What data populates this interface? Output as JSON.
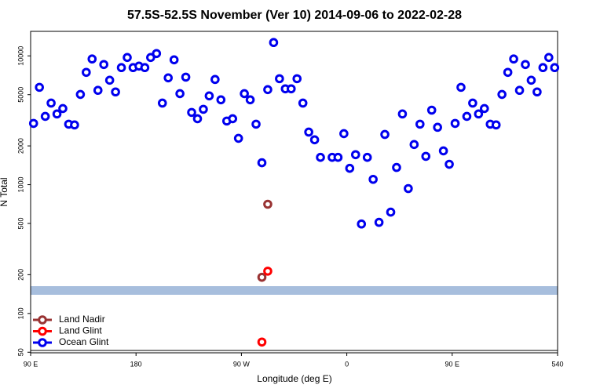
{
  "chart_data": {
    "type": "scatter",
    "title": "57.5S-52.5S November (Ver 10)   2014-09-06 to 2022-02-28",
    "x_label": "Longitude (deg E)",
    "y_label": "N Total",
    "log_y": true,
    "legend": "lower left",
    "xlim": [
      90,
      540
    ],
    "ylim": [
      49.5,
      15500
    ],
    "xticks": [
      {
        "value": 90,
        "label": "90 E"
      },
      180,
      {
        "value": 270,
        "label": "90 W"
      },
      {
        "value": 360,
        "label": "0"
      },
      {
        "value": 450,
        "label": "90 E"
      },
      540
    ],
    "yticks": [
      50,
      100,
      200,
      500,
      1000,
      2000,
      5000,
      10000
    ],
    "series": [
      {
        "name": "Land Nadir",
        "color": "#993333",
        "x": [
          287.5,
          292.5
        ],
        "values": [
          191,
          705
        ]
      },
      {
        "name": "Land Glint",
        "color": "#ff0000",
        "x": [
          287.5,
          292.5
        ],
        "values": [
          60,
          213
        ]
      },
      {
        "name": "Ocean Glint",
        "color": "#0000ee",
        "x": [
          92.5,
          97.5,
          102.5,
          107.5,
          112.5,
          117.5,
          122.5,
          127.5,
          132.5,
          137.5,
          142.5,
          147.5,
          152.5,
          157.5,
          162.5,
          167.5,
          172.5,
          177.5,
          182.5,
          187.5,
          192.5,
          197.5,
          202.5,
          207.5,
          212.5,
          217.5,
          222.5,
          227.5,
          232.5,
          237.5,
          242.5,
          247.5,
          252.5,
          257.5,
          262.5,
          267.5,
          272.5,
          277.5,
          282.5,
          287.5,
          292.5,
          297.5,
          302.5,
          307.5,
          312.5,
          317.5,
          322.5,
          327.5,
          332.5,
          337.5,
          347.5,
          352.5,
          357.5,
          362.5,
          367.5,
          372.5,
          377.5,
          382.5,
          387.5,
          392.5,
          397.5,
          402.5,
          407.5,
          412.5,
          417.5,
          422.5,
          427.5,
          432.5,
          437.5,
          442.5,
          447.5,
          452.5,
          457.5,
          462.5,
          467.5,
          472.5,
          477.5,
          482.5,
          487.5,
          492.5,
          497.5,
          502.5,
          507.5,
          512.5,
          517.5,
          522.5,
          527.5,
          532.5,
          537.5
        ],
        "values": [
          2990,
          5700,
          3390,
          4300,
          3540,
          3900,
          2950,
          2910,
          5020,
          7450,
          9460,
          5400,
          8570,
          6470,
          5250,
          8110,
          9720,
          8110,
          8330,
          8110,
          9720,
          10430,
          4300,
          6750,
          9320,
          5090,
          6840,
          3640,
          3250,
          3850,
          4890,
          6560,
          4560,
          3120,
          3250,
          2290,
          5090,
          4560,
          2950,
          1480,
          5470,
          12700,
          6650,
          5550,
          5550,
          6650,
          4300,
          2560,
          2230,
          1630,
          1630,
          1630,
          2490,
          1340,
          1710,
          495,
          1630,
          1100,
          510,
          2455,
          612,
          1360,
          3540,
          933,
          2050,
          2950,
          1660,
          3790,
          2790,
          1830,
          1440,
          2990,
          5700,
          3390,
          4300,
          3540,
          3900,
          2950,
          2910,
          5020,
          7450,
          9460,
          5400,
          8570,
          6470,
          5250,
          8110,
          9720,
          8110
        ]
      }
    ]
  }
}
